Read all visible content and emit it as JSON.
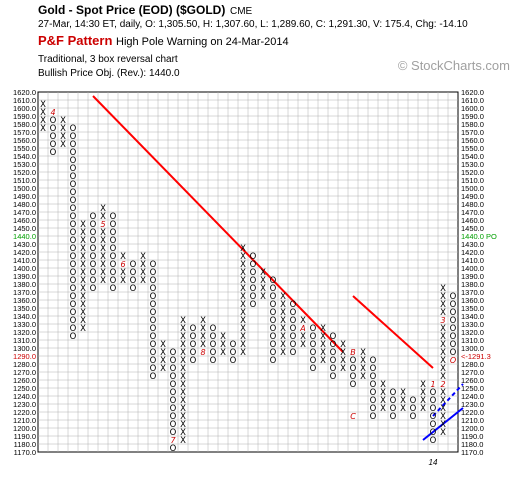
{
  "header": {
    "title": "Gold - Spot Price (EOD) ($GOLD)",
    "exchange": "CME",
    "quote": "27-Mar, 14:30 ET, daily, O: 1,305.50, H: 1,307.60, L: 1,289.60, C: 1,291.30, V: 175.4, Chg: -14.10",
    "pattern_label": "P&F Pattern",
    "pattern_text": "High Pole Warning on 24-Mar-2014",
    "method": "Traditional, 3 box reversal chart",
    "objective": "Bullish Price Obj. (Rev.): 1440.0"
  },
  "watermark": "© StockCharts.com",
  "colors": {
    "x_mark": "#000000",
    "o_mark": "#000000",
    "trendline_bearish": "#ff0000",
    "trendline_bullish": "#0000ff",
    "month_marker": "#cc0000",
    "price_objective": "#00a000",
    "current_price": "#cc0000",
    "grid": "#b0b0b0"
  },
  "chart_data": {
    "type": "point-and-figure",
    "box_size": 10,
    "reversal": 3,
    "ylim": [
      1170,
      1620
    ],
    "yticks_step": 10,
    "columns": [
      {
        "type": "X",
        "low": 1580,
        "high": 1610
      },
      {
        "type": "O",
        "low": 1550,
        "high": 1600
      },
      {
        "type": "X",
        "low": 1560,
        "high": 1590
      },
      {
        "type": "O",
        "low": 1320,
        "high": 1580
      },
      {
        "type": "X",
        "low": 1330,
        "high": 1460
      },
      {
        "type": "O",
        "low": 1380,
        "high": 1470
      },
      {
        "type": "X",
        "low": 1390,
        "high": 1480
      },
      {
        "type": "O",
        "low": 1380,
        "high": 1470
      },
      {
        "type": "X",
        "low": 1390,
        "high": 1420
      },
      {
        "type": "O",
        "low": 1380,
        "high": 1410
      },
      {
        "type": "X",
        "low": 1390,
        "high": 1420
      },
      {
        "type": "O",
        "low": 1270,
        "high": 1410
      },
      {
        "type": "X",
        "low": 1280,
        "high": 1310
      },
      {
        "type": "O",
        "low": 1180,
        "high": 1300
      },
      {
        "type": "X",
        "low": 1190,
        "high": 1340
      },
      {
        "type": "O",
        "low": 1290,
        "high": 1330
      },
      {
        "type": "X",
        "low": 1300,
        "high": 1340
      },
      {
        "type": "O",
        "low": 1290,
        "high": 1330
      },
      {
        "type": "X",
        "low": 1300,
        "high": 1320
      },
      {
        "type": "O",
        "low": 1290,
        "high": 1310
      },
      {
        "type": "X",
        "low": 1300,
        "high": 1430
      },
      {
        "type": "O",
        "low": 1360,
        "high": 1420
      },
      {
        "type": "X",
        "low": 1370,
        "high": 1400
      },
      {
        "type": "O",
        "low": 1290,
        "high": 1390
      },
      {
        "type": "X",
        "low": 1300,
        "high": 1370
      },
      {
        "type": "O",
        "low": 1300,
        "high": 1360
      },
      {
        "type": "X",
        "low": 1310,
        "high": 1340
      },
      {
        "type": "O",
        "low": 1280,
        "high": 1330
      },
      {
        "type": "X",
        "low": 1290,
        "high": 1330
      },
      {
        "type": "O",
        "low": 1270,
        "high": 1320
      },
      {
        "type": "X",
        "low": 1280,
        "high": 1310
      },
      {
        "type": "O",
        "low": 1260,
        "high": 1300
      },
      {
        "type": "X",
        "low": 1270,
        "high": 1300
      },
      {
        "type": "O",
        "low": 1220,
        "high": 1290
      },
      {
        "type": "X",
        "low": 1230,
        "high": 1260
      },
      {
        "type": "O",
        "low": 1220,
        "high": 1250
      },
      {
        "type": "X",
        "low": 1230,
        "high": 1250
      },
      {
        "type": "O",
        "low": 1220,
        "high": 1240
      },
      {
        "type": "X",
        "low": 1230,
        "high": 1260
      },
      {
        "type": "O",
        "low": 1190,
        "high": 1250
      },
      {
        "type": "X",
        "low": 1200,
        "high": 1380
      },
      {
        "type": "O",
        "low": 1290,
        "high": 1370
      }
    ],
    "month_markers": [
      {
        "col": 1,
        "value": 1600,
        "label": "4"
      },
      {
        "col": 6,
        "value": 1460,
        "label": "5"
      },
      {
        "col": 8,
        "value": 1410,
        "label": "6"
      },
      {
        "col": 13,
        "value": 1190,
        "label": "7"
      },
      {
        "col": 16,
        "value": 1300,
        "label": "8"
      },
      {
        "col": 26,
        "value": 1330,
        "label": "A"
      },
      {
        "col": 31,
        "value": 1300,
        "label": "B"
      },
      {
        "col": 31,
        "value": 1220,
        "label": "C"
      },
      {
        "col": 39,
        "value": 1260,
        "label": "1"
      },
      {
        "col": 40,
        "value": 1260,
        "label": "2"
      },
      {
        "col": 40,
        "value": 1340,
        "label": "3"
      },
      {
        "col": 41,
        "value": 1290,
        "label": "O"
      }
    ],
    "trendlines": [
      {
        "kind": "bearish",
        "style": "solid",
        "from": {
          "col": 5,
          "value": 1620
        },
        "to": {
          "col": 30,
          "value": 1300
        }
      },
      {
        "kind": "bearish",
        "style": "solid",
        "from": {
          "col": 31,
          "value": 1370
        },
        "to": {
          "col": 39,
          "value": 1280
        }
      },
      {
        "kind": "bullish",
        "style": "solid",
        "from": {
          "col": 38,
          "value": 1190
        },
        "to": {
          "col": 42,
          "value": 1230
        }
      },
      {
        "kind": "bullish",
        "style": "dashed",
        "from": {
          "col": 39,
          "value": 1220
        },
        "to": {
          "col": 42,
          "value": 1260
        }
      }
    ],
    "x_axis_labels": [
      {
        "col": 39,
        "label": "14"
      }
    ],
    "price_objective": {
      "value": 1440,
      "left_label": "1440.0",
      "right_label": "1440.0 PO"
    },
    "current_price": {
      "value": 1290,
      "left_label": "1290.0",
      "right_label": "<-1291.3"
    }
  }
}
